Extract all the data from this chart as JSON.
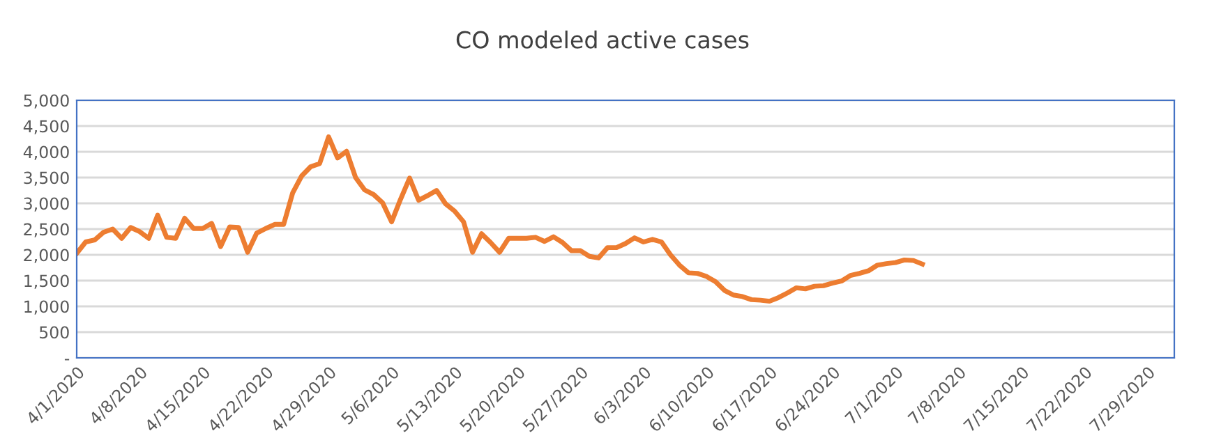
{
  "chart_data": {
    "type": "line",
    "title": "CO modeled active cases",
    "x": [
      "2020-04-01",
      "2020-04-02",
      "2020-04-03",
      "2020-04-04",
      "2020-04-05",
      "2020-04-06",
      "2020-04-07",
      "2020-04-08",
      "2020-04-09",
      "2020-04-10",
      "2020-04-11",
      "2020-04-12",
      "2020-04-13",
      "2020-04-14",
      "2020-04-15",
      "2020-04-16",
      "2020-04-17",
      "2020-04-18",
      "2020-04-19",
      "2020-04-20",
      "2020-04-21",
      "2020-04-22",
      "2020-04-23",
      "2020-04-24",
      "2020-04-25",
      "2020-04-26",
      "2020-04-27",
      "2020-04-28",
      "2020-04-29",
      "2020-04-30",
      "2020-05-01",
      "2020-05-02",
      "2020-05-03",
      "2020-05-04",
      "2020-05-05",
      "2020-05-06",
      "2020-05-07",
      "2020-05-08",
      "2020-05-09",
      "2020-05-10",
      "2020-05-11",
      "2020-05-12",
      "2020-05-13",
      "2020-05-14",
      "2020-05-15",
      "2020-05-16",
      "2020-05-17",
      "2020-05-18",
      "2020-05-19",
      "2020-05-20",
      "2020-05-21",
      "2020-05-22",
      "2020-05-23",
      "2020-05-24",
      "2020-05-25",
      "2020-05-26",
      "2020-05-27",
      "2020-05-28",
      "2020-05-29",
      "2020-05-30",
      "2020-05-31",
      "2020-06-01",
      "2020-06-02",
      "2020-06-03",
      "2020-06-04",
      "2020-06-05",
      "2020-06-06",
      "2020-06-07",
      "2020-06-08",
      "2020-06-09",
      "2020-06-10",
      "2020-06-11",
      "2020-06-12",
      "2020-06-13",
      "2020-06-14",
      "2020-06-15",
      "2020-06-16",
      "2020-06-17",
      "2020-06-18",
      "2020-06-19",
      "2020-06-20",
      "2020-06-21",
      "2020-06-22",
      "2020-06-23",
      "2020-06-24",
      "2020-06-25",
      "2020-06-26",
      "2020-06-27",
      "2020-06-28",
      "2020-06-29",
      "2020-06-30",
      "2020-07-01",
      "2020-07-02",
      "2020-07-03",
      "2020-07-04"
    ],
    "series": [
      {
        "color": "#ed7d31",
        "values": [
          2030,
          2250,
          2290,
          2440,
          2500,
          2320,
          2530,
          2450,
          2320,
          2770,
          2340,
          2320,
          2710,
          2510,
          2510,
          2610,
          2160,
          2540,
          2530,
          2050,
          2420,
          2510,
          2590,
          2590,
          3200,
          3530,
          3710,
          3770,
          4290,
          3880,
          4010,
          3500,
          3260,
          3170,
          3010,
          2640,
          3080,
          3490,
          3060,
          3150,
          3250,
          2990,
          2850,
          2640,
          2050,
          2410,
          2240,
          2050,
          2320,
          2320,
          2320,
          2340,
          2260,
          2350,
          2240,
          2080,
          2080,
          1970,
          1940,
          2140,
          2140,
          2220,
          2330,
          2250,
          2300,
          2250,
          2000,
          1800,
          1650,
          1640,
          1580,
          1480,
          1310,
          1220,
          1190,
          1130,
          1120,
          1100,
          1170,
          1260,
          1360,
          1340,
          1390,
          1400,
          1450,
          1490,
          1600,
          1640,
          1690,
          1800,
          1830,
          1850,
          1900,
          1890,
          1820
        ]
      }
    ],
    "xlim": [
      "2020-04-01",
      "2020-08-01"
    ],
    "xticks": [
      {
        "value": "2020-04-01",
        "label": "4/1/2020"
      },
      {
        "value": "2020-04-08",
        "label": "4/8/2020"
      },
      {
        "value": "2020-04-15",
        "label": "4/15/2020"
      },
      {
        "value": "2020-04-22",
        "label": "4/22/2020"
      },
      {
        "value": "2020-04-29",
        "label": "4/29/2020"
      },
      {
        "value": "2020-05-06",
        "label": "5/6/2020"
      },
      {
        "value": "2020-05-13",
        "label": "5/13/2020"
      },
      {
        "value": "2020-05-20",
        "label": "5/20/2020"
      },
      {
        "value": "2020-05-27",
        "label": "5/27/2020"
      },
      {
        "value": "2020-06-03",
        "label": "6/3/2020"
      },
      {
        "value": "2020-06-10",
        "label": "6/10/2020"
      },
      {
        "value": "2020-06-17",
        "label": "6/17/2020"
      },
      {
        "value": "2020-06-24",
        "label": "6/24/2020"
      },
      {
        "value": "2020-07-01",
        "label": "7/1/2020"
      },
      {
        "value": "2020-07-08",
        "label": "7/8/2020"
      },
      {
        "value": "2020-07-15",
        "label": "7/15/2020"
      },
      {
        "value": "2020-07-22",
        "label": "7/22/2020"
      },
      {
        "value": "2020-07-29",
        "label": "7/29/2020"
      }
    ],
    "ylim": [
      0,
      5000
    ],
    "yticks": [
      {
        "value": 0,
        "label": "-"
      },
      {
        "value": 500,
        "label": "500"
      },
      {
        "value": 1000,
        "label": "1,000"
      },
      {
        "value": 1500,
        "label": "1,500"
      },
      {
        "value": 2000,
        "label": "2,000"
      },
      {
        "value": 2500,
        "label": "2,500"
      },
      {
        "value": 3000,
        "label": "3,000"
      },
      {
        "value": 3500,
        "label": "3,500"
      },
      {
        "value": 4000,
        "label": "4,000"
      },
      {
        "value": 4500,
        "label": "4,500"
      },
      {
        "value": 5000,
        "label": "5,000"
      }
    ],
    "grid": "y",
    "marker": "none",
    "line_style": "solid"
  }
}
